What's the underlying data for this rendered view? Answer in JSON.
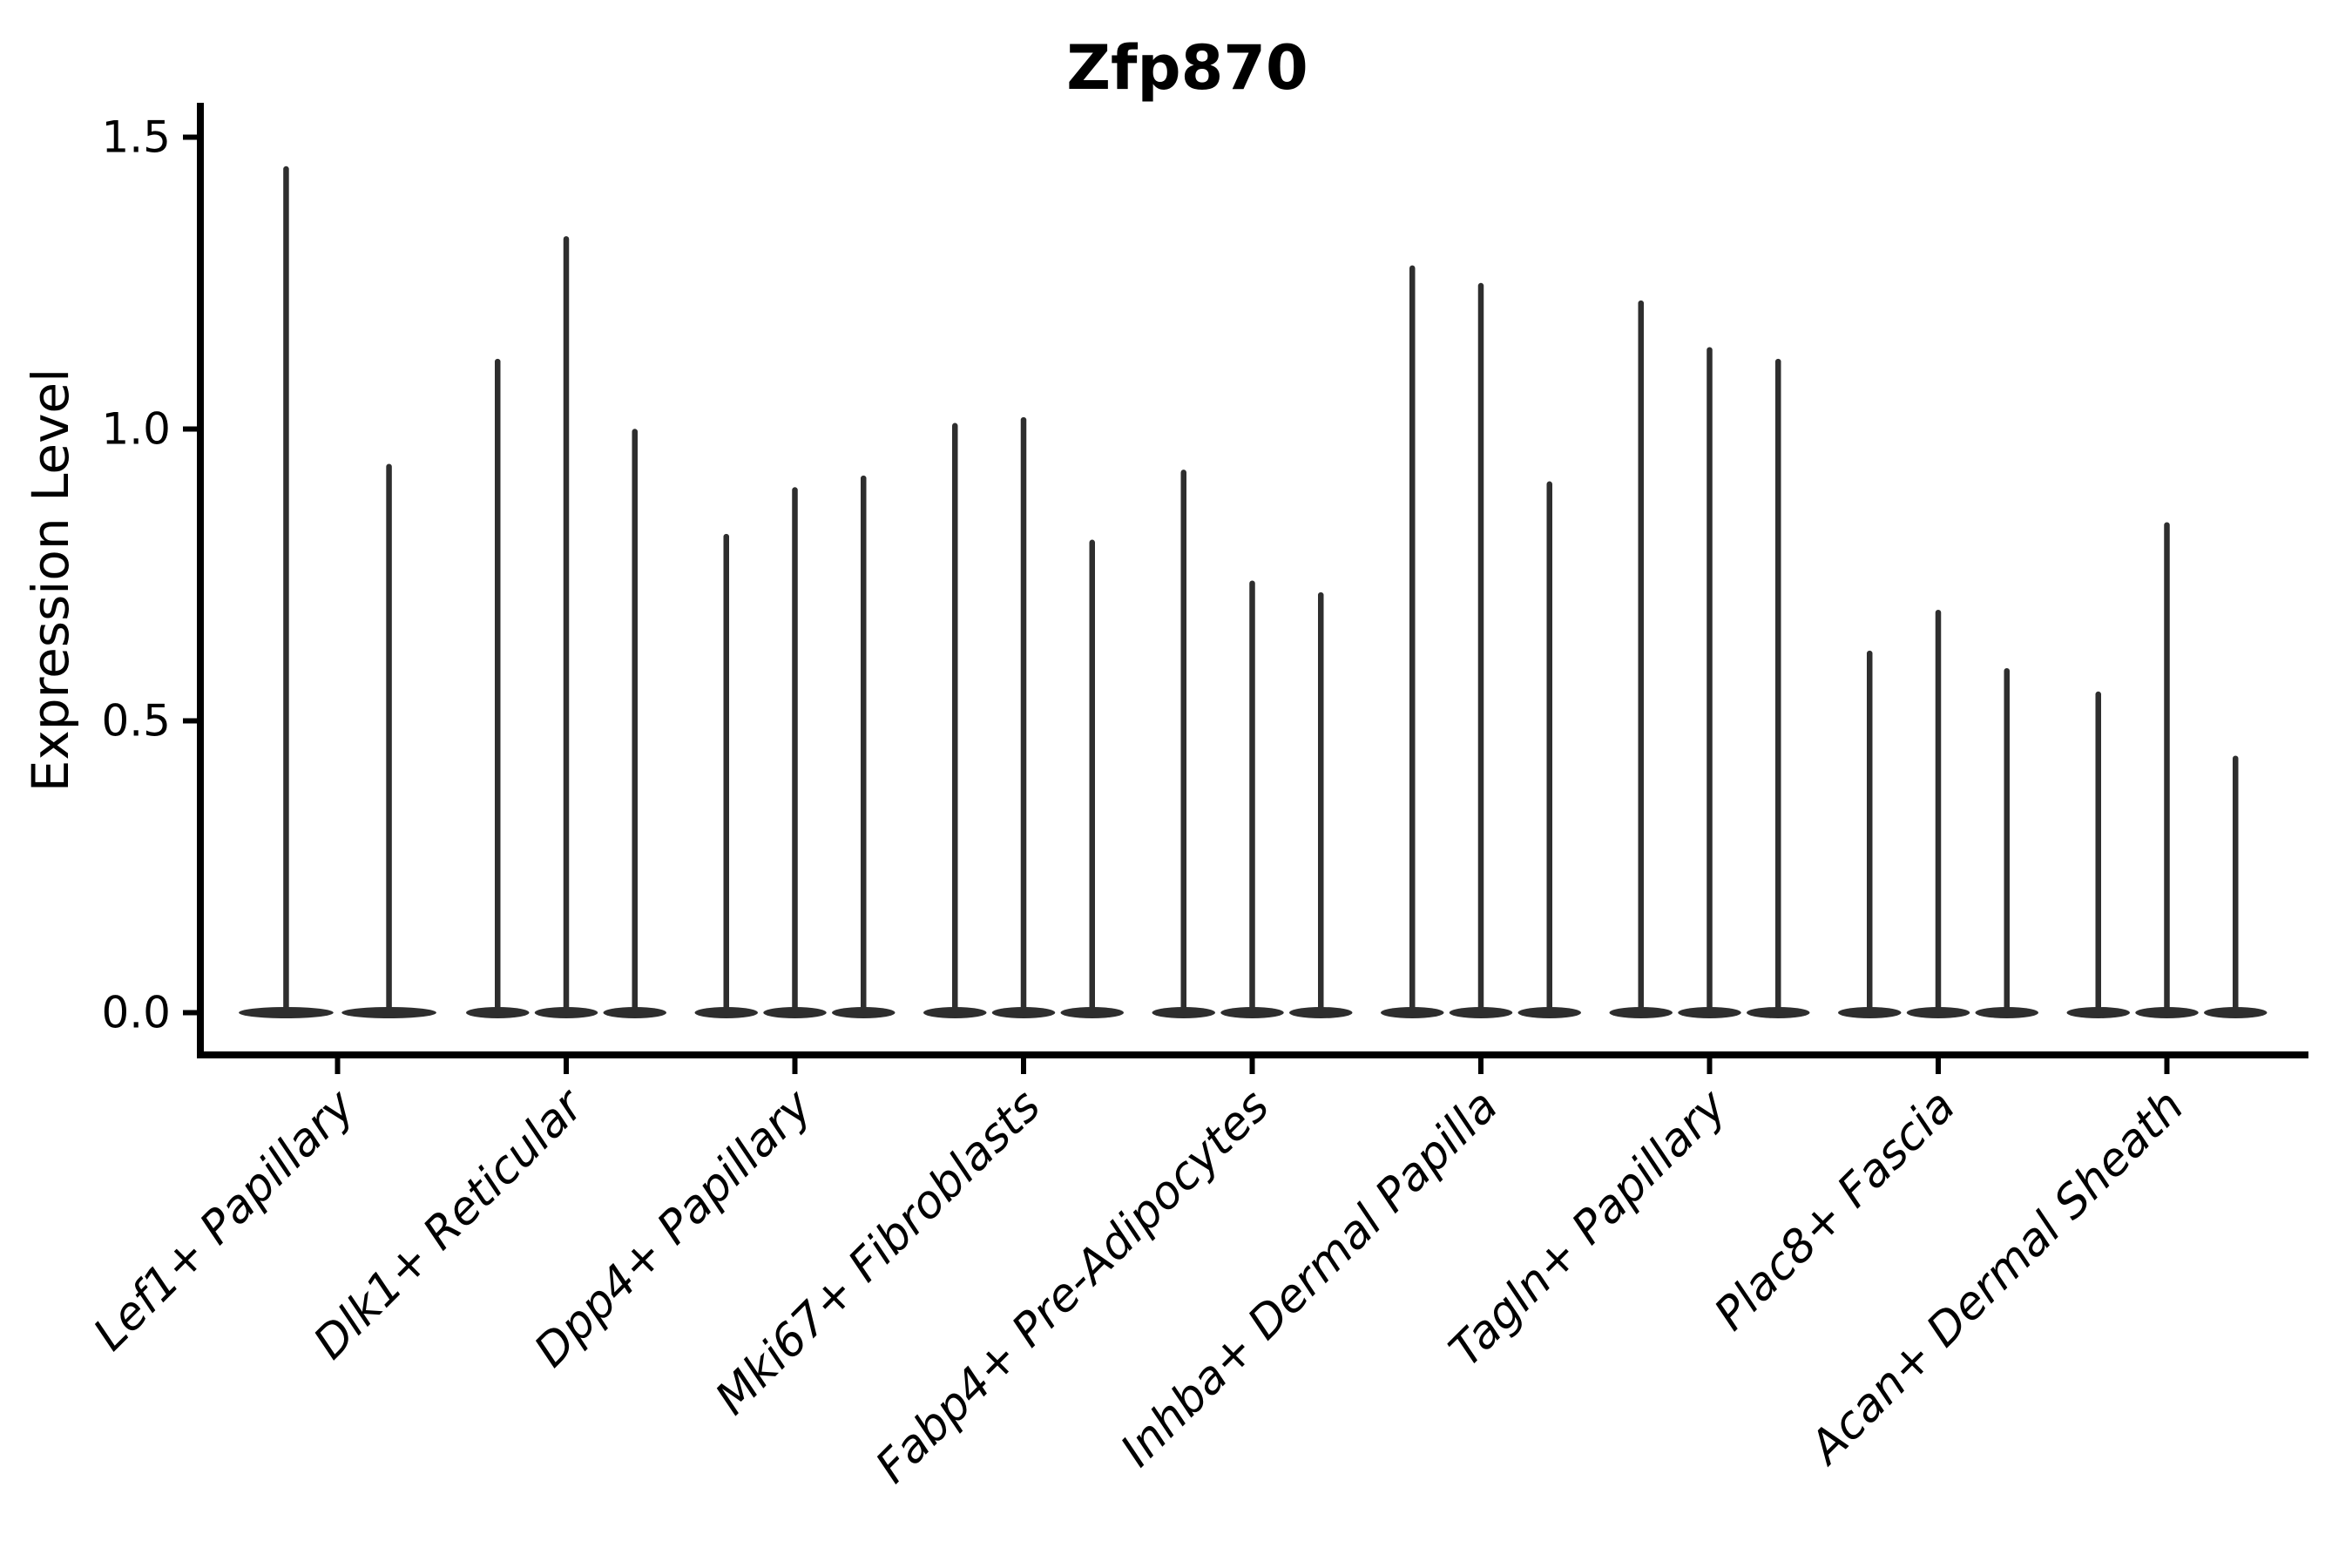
{
  "figure": {
    "background": "#ffffff"
  },
  "chart_data": {
    "type": "violin",
    "title": "Zfp870",
    "xlabel": "",
    "ylabel": "Expression Level",
    "ylim": [
      -0.07,
      1.56
    ],
    "yticks": [
      0.0,
      0.5,
      1.0,
      1.5
    ],
    "ytick_labels": [
      "0.0",
      "0.5",
      "1.0",
      "1.5"
    ],
    "grid": false,
    "legend": "none",
    "style_note": "thin black violin plot; only left and bottom spines; flat dense base at 0 with narrow tails up to max",
    "categories": [
      "Lef1+ Papillary",
      "Dlk1+ Reticular",
      "Dpp4+ Papillary",
      "Mki67+ Fibroblasts",
      "Fabp4+ Pre-Adipocytes",
      "Inhba+ Dermal Papilla",
      "Tagln+ Papillary",
      "Plac8+ Fascia",
      "Acan+ Dermal Sheath"
    ],
    "groups": [
      {
        "category": "Lef1+ Papillary",
        "violins": [
          {
            "offset": -0.225,
            "width": 0.45,
            "max": 1.45
          },
          {
            "offset": 0.225,
            "width": 0.45,
            "max": 0.94
          }
        ]
      },
      {
        "category": "Dlk1+ Reticular",
        "violins": [
          {
            "offset": -0.3,
            "width": 0.3,
            "max": 1.12
          },
          {
            "offset": 0.0,
            "width": 0.3,
            "max": 1.33
          },
          {
            "offset": 0.3,
            "width": 0.3,
            "max": 1.0
          }
        ]
      },
      {
        "category": "Dpp4+ Papillary",
        "violins": [
          {
            "offset": -0.3,
            "width": 0.3,
            "max": 0.82
          },
          {
            "offset": 0.0,
            "width": 0.3,
            "max": 0.9
          },
          {
            "offset": 0.3,
            "width": 0.3,
            "max": 0.92
          }
        ]
      },
      {
        "category": "Mki67+ Fibroblasts",
        "violins": [
          {
            "offset": -0.3,
            "width": 0.3,
            "max": 1.01
          },
          {
            "offset": 0.0,
            "width": 0.3,
            "max": 1.02
          },
          {
            "offset": 0.3,
            "width": 0.3,
            "max": 0.81
          }
        ]
      },
      {
        "category": "Fabp4+ Pre-Adipocytes",
        "violins": [
          {
            "offset": -0.3,
            "width": 0.3,
            "max": 0.93
          },
          {
            "offset": 0.0,
            "width": 0.3,
            "max": 0.74
          },
          {
            "offset": 0.3,
            "width": 0.3,
            "max": 0.72
          }
        ]
      },
      {
        "category": "Inhba+ Dermal Papilla",
        "violins": [
          {
            "offset": -0.3,
            "width": 0.3,
            "max": 1.28
          },
          {
            "offset": 0.0,
            "width": 0.3,
            "max": 1.25
          },
          {
            "offset": 0.3,
            "width": 0.3,
            "max": 0.91
          }
        ]
      },
      {
        "category": "Tagln+ Papillary",
        "violins": [
          {
            "offset": -0.3,
            "width": 0.3,
            "max": 1.22
          },
          {
            "offset": 0.0,
            "width": 0.3,
            "max": 1.14
          },
          {
            "offset": 0.3,
            "width": 0.3,
            "max": 1.12
          }
        ]
      },
      {
        "category": "Plac8+ Fascia",
        "violins": [
          {
            "offset": -0.3,
            "width": 0.3,
            "max": 0.62
          },
          {
            "offset": 0.0,
            "width": 0.3,
            "max": 0.69
          },
          {
            "offset": 0.3,
            "width": 0.3,
            "max": 0.59
          }
        ]
      },
      {
        "category": "Acan+ Dermal Sheath",
        "violins": [
          {
            "offset": -0.3,
            "width": 0.3,
            "max": 0.55
          },
          {
            "offset": 0.0,
            "width": 0.3,
            "max": 0.84
          },
          {
            "offset": 0.3,
            "width": 0.3,
            "max": 0.44
          }
        ]
      }
    ],
    "colors": {
      "violin": "#2e2e2e",
      "spine": "#000000",
      "text": "#000000",
      "background": "#ffffff"
    }
  }
}
